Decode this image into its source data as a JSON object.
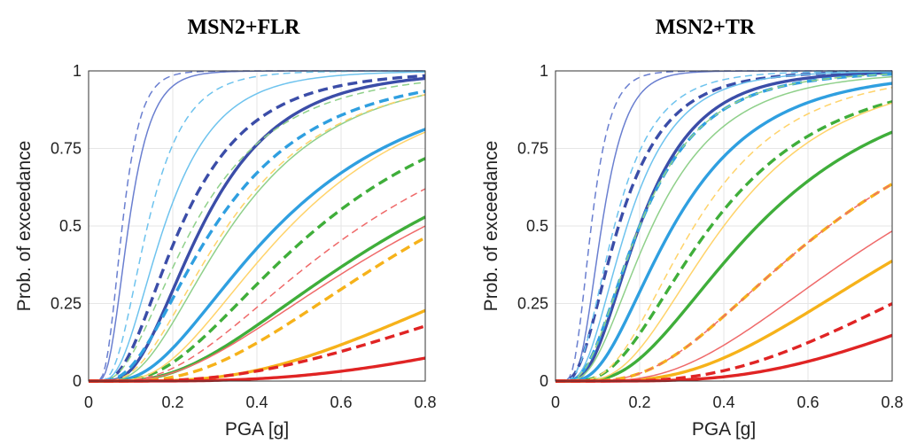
{
  "chart_data": [
    {
      "type": "line",
      "title": "MSN2+FLR",
      "xlabel": "PGA [g]",
      "ylabel": "Prob. of exceedance",
      "xlim": [
        0,
        0.8
      ],
      "ylim": [
        0,
        1
      ],
      "xticks": [
        "0",
        "0.2",
        "0.4",
        "0.6",
        "0.8"
      ],
      "yticks": [
        "0",
        "0.25",
        "0.5",
        "0.75",
        "1"
      ],
      "grid": true,
      "series": [
        {
          "color": "#6a7fd0",
          "style": "solid",
          "width": "thin",
          "median": 0.095,
          "beta": 0.45
        },
        {
          "color": "#6a7fd0",
          "style": "dashed",
          "width": "thin",
          "median": 0.08,
          "beta": 0.42
        },
        {
          "color": "#3b4da8",
          "style": "solid",
          "width": "thick",
          "median": 0.27,
          "beta": 0.55
        },
        {
          "color": "#3b4da8",
          "style": "dashed",
          "width": "thick",
          "median": 0.22,
          "beta": 0.6
        },
        {
          "color": "#6ec3ee",
          "style": "solid",
          "width": "thin",
          "median": 0.18,
          "beta": 0.55
        },
        {
          "color": "#6ec3ee",
          "style": "dashed",
          "width": "thin",
          "median": 0.14,
          "beta": 0.5
        },
        {
          "color": "#2f9fe0",
          "style": "solid",
          "width": "thick",
          "median": 0.45,
          "beta": 0.65
        },
        {
          "color": "#2f9fe0",
          "style": "dashed",
          "width": "thick",
          "median": 0.3,
          "beta": 0.65
        },
        {
          "color": "#8fd08a",
          "style": "solid",
          "width": "thin",
          "median": 0.34,
          "beta": 0.6
        },
        {
          "color": "#8fd08a",
          "style": "dashed",
          "width": "thin",
          "median": 0.25,
          "beta": 0.65
        },
        {
          "color": "#3fae3a",
          "style": "solid",
          "width": "thick",
          "median": 0.76,
          "beta": 0.7
        },
        {
          "color": "#3fae3a",
          "style": "dashed",
          "width": "thick",
          "median": 0.55,
          "beta": 0.65
        },
        {
          "color": "#ffd36a",
          "style": "solid",
          "width": "thin",
          "median": 0.48,
          "beta": 0.6
        },
        {
          "color": "#ffd36a",
          "style": "dashed",
          "width": "thin",
          "median": 0.33,
          "beta": 0.62
        },
        {
          "color": "#f6b21a",
          "style": "solid",
          "width": "thick",
          "median": 1.3,
          "beta": 0.65
        },
        {
          "color": "#f6b21a",
          "style": "dashed",
          "width": "thick",
          "median": 0.85,
          "beta": 0.65
        },
        {
          "color": "#ef6a6a",
          "style": "solid",
          "width": "thin",
          "median": 0.8,
          "beta": 0.72
        },
        {
          "color": "#ef6a6a",
          "style": "dashed",
          "width": "thin",
          "median": 0.65,
          "beta": 0.68
        },
        {
          "color": "#e02424",
          "style": "solid",
          "width": "thick",
          "median": 2.2,
          "beta": 0.7
        },
        {
          "color": "#e02424",
          "style": "dashed",
          "width": "thick",
          "median": 1.6,
          "beta": 0.75
        }
      ]
    },
    {
      "type": "line",
      "title": "MSN2+TR",
      "xlabel": "PGA [g]",
      "ylabel": "Prob. of exceedance",
      "xlim": [
        0,
        0.8
      ],
      "ylim": [
        0,
        1
      ],
      "xticks": [
        "0",
        "0.2",
        "0.4",
        "0.6",
        "0.8"
      ],
      "yticks": [
        "0",
        "0.25",
        "0.5",
        "0.75",
        "1"
      ],
      "grid": true,
      "series": [
        {
          "color": "#6a7fd0",
          "style": "solid",
          "width": "thin",
          "median": 0.11,
          "beta": 0.42
        },
        {
          "color": "#6a7fd0",
          "style": "dashed",
          "width": "thin",
          "median": 0.085,
          "beta": 0.42
        },
        {
          "color": "#3b4da8",
          "style": "solid",
          "width": "thick",
          "median": 0.2,
          "beta": 0.55
        },
        {
          "color": "#3b4da8",
          "style": "dashed",
          "width": "thick",
          "median": 0.15,
          "beta": 0.6
        },
        {
          "color": "#6ec3ee",
          "style": "solid",
          "width": "thin",
          "median": 0.17,
          "beta": 0.55
        },
        {
          "color": "#6ec3ee",
          "style": "dashed",
          "width": "thin",
          "median": 0.14,
          "beta": 0.55
        },
        {
          "color": "#2f9fe0",
          "style": "solid",
          "width": "thick",
          "median": 0.28,
          "beta": 0.6
        },
        {
          "color": "#2f9fe0",
          "style": "dashed",
          "width": "thick",
          "median": 0.2,
          "beta": 0.6
        },
        {
          "color": "#8fd08a",
          "style": "solid",
          "width": "thin",
          "median": 0.23,
          "beta": 0.6
        },
        {
          "color": "#8fd08a",
          "style": "dashed",
          "width": "thin",
          "median": 0.2,
          "beta": 0.6
        },
        {
          "color": "#3fae3a",
          "style": "solid",
          "width": "thick",
          "median": 0.48,
          "beta": 0.6
        },
        {
          "color": "#3fae3a",
          "style": "dashed",
          "width": "thick",
          "median": 0.37,
          "beta": 0.6
        },
        {
          "color": "#ffd36a",
          "style": "solid",
          "width": "thin",
          "median": 0.4,
          "beta": 0.55
        },
        {
          "color": "#ffd36a",
          "style": "dashed",
          "width": "thin",
          "median": 0.33,
          "beta": 0.55
        },
        {
          "color": "#f6b21a",
          "style": "solid",
          "width": "thick",
          "median": 0.95,
          "beta": 0.6
        },
        {
          "color": "#f6b21a",
          "style": "dashed",
          "width": "thick",
          "median": 0.65,
          "beta": 0.6
        },
        {
          "color": "#ef6a6a",
          "style": "solid",
          "width": "thin",
          "median": 0.82,
          "beta": 0.6
        },
        {
          "color": "#ef6a6a",
          "style": "dashed",
          "width": "thin",
          "median": 0.65,
          "beta": 0.6
        },
        {
          "color": "#e02424",
          "style": "solid",
          "width": "thick",
          "median": 1.5,
          "beta": 0.6
        },
        {
          "color": "#e02424",
          "style": "dashed",
          "width": "thick",
          "median": 1.2,
          "beta": 0.6
        }
      ]
    }
  ]
}
